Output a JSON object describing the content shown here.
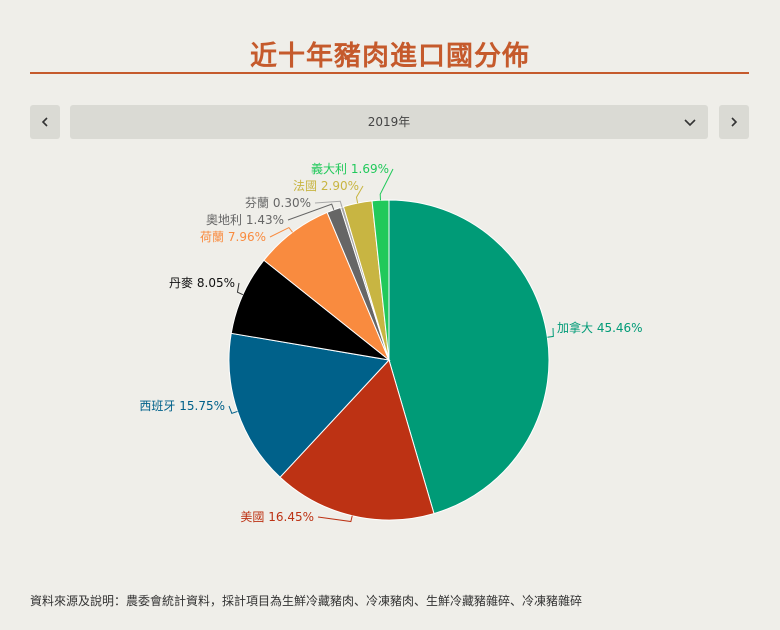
{
  "title": "近十年豬肉進口國分佈",
  "year_selector": {
    "selected": "2019年"
  },
  "footer_note": "資料來源及說明：農委會統計資料，採計項目為生鮮冷藏豬肉、冷凍豬肉、生鮮冷藏豬雜碎、冷凍豬雜碎",
  "chart_data": {
    "type": "pie",
    "start_angle_deg": 0,
    "direction": "clockwise",
    "slices": [
      {
        "label": "加拿大",
        "value": 45.46,
        "value_label": "45.46%",
        "color": "#009b77"
      },
      {
        "label": "美國",
        "value": 16.45,
        "value_label": "16.45%",
        "color": "#bd3214"
      },
      {
        "label": "西班牙",
        "value": 15.75,
        "value_label": "15.75%",
        "color": "#00618a"
      },
      {
        "label": "丹麥",
        "value": 8.05,
        "value_label": "8.05%",
        "color": "#000000"
      },
      {
        "label": "荷蘭",
        "value": 7.96,
        "value_label": "7.96%",
        "color": "#f98b3f"
      },
      {
        "label": "奧地利",
        "value": 1.43,
        "value_label": "1.43%",
        "color": "#666666"
      },
      {
        "label": "芬蘭",
        "value": 0.3,
        "value_label": "0.30%",
        "color": "#a7a7a7"
      },
      {
        "label": "法國",
        "value": 2.9,
        "value_label": "2.90%",
        "color": "#c8b542"
      },
      {
        "label": "義大利",
        "value": 1.69,
        "value_label": "1.69%",
        "color": "#21c95b"
      }
    ]
  }
}
